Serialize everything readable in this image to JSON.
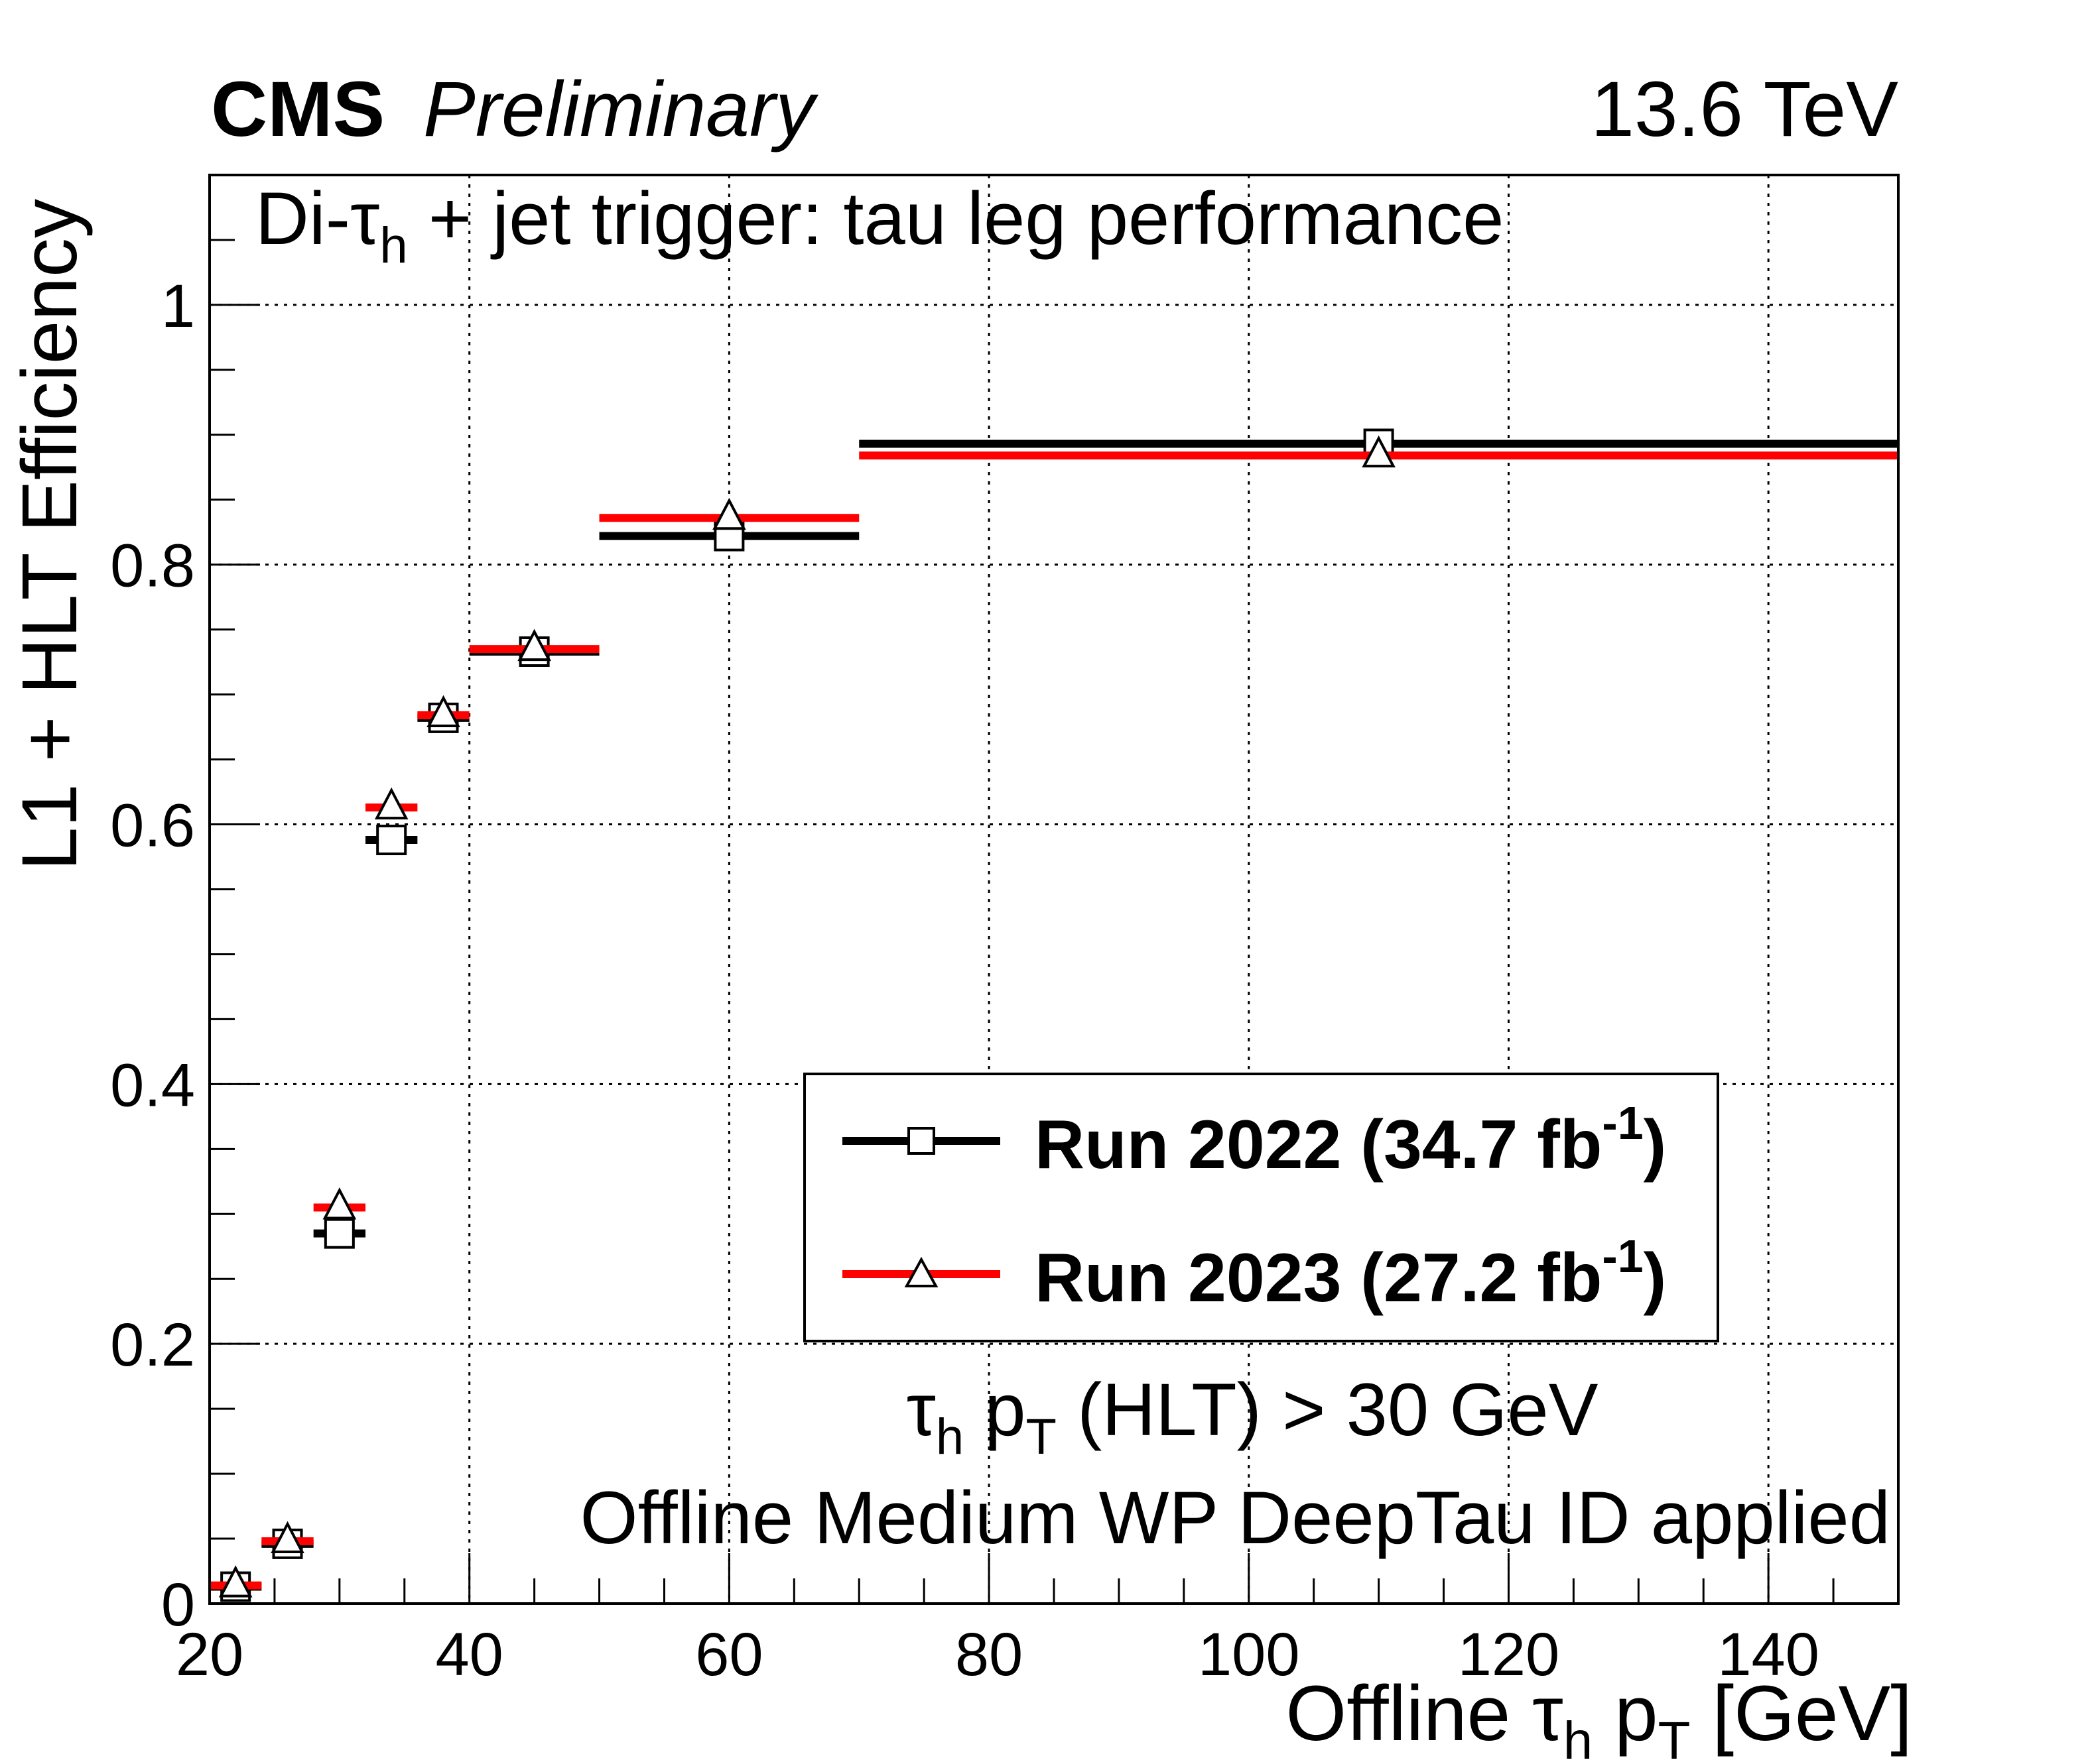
{
  "header": {
    "experiment": "CMS",
    "status": "Preliminary",
    "energy": "13.6 TeV"
  },
  "annotations": {
    "title_prefix": "Di-",
    "title_tau": "τ",
    "title_sub": "h",
    "title_suffix": " + jet trigger: tau leg performance",
    "cut_tau": "τ",
    "cut_tau_sub": "h",
    "cut_p": " p",
    "cut_p_sub": "T",
    "cut_suffix": " (HLT) > 30 GeV",
    "id_text": "Offline Medium WP DeepTau ID applied"
  },
  "axes": {
    "x_label_prefix": "Offline ",
    "x_label_tau": "τ",
    "x_label_tau_sub": "h",
    "x_label_p": " p",
    "x_label_p_sub": "T",
    "x_label_suffix": " [GeV]",
    "y_label": "L1 + HLT Efficiency"
  },
  "chart_data": {
    "type": "scatter",
    "title": "Di-τh + jet trigger: tau leg performance",
    "xlabel": "Offline τh pT [GeV]",
    "ylabel": "L1 + HLT Efficiency",
    "xlim": [
      20,
      150
    ],
    "ylim": [
      0,
      1.1
    ],
    "grid": true,
    "x_ticks": [
      20,
      40,
      60,
      80,
      100,
      120,
      140
    ],
    "y_ticks": [
      0,
      0.2,
      0.4,
      0.6,
      0.8,
      1
    ],
    "x_tick_labels": [
      "20",
      "40",
      "60",
      "80",
      "100",
      "120",
      "140"
    ],
    "y_tick_labels": [
      "0",
      "0.2",
      "0.4",
      "0.6",
      "0.8",
      "1"
    ],
    "legend_position": "center-right",
    "series": [
      {
        "name": "Run 2022",
        "label_main": "Run 2022 (34.7 fb",
        "label_sup": "-1",
        "label_end": ")",
        "color": "#000000",
        "marker": "open-square",
        "points": [
          {
            "x": 22,
            "xlo": 20,
            "xhi": 24,
            "y": 0.013
          },
          {
            "x": 26,
            "xlo": 24,
            "xhi": 28,
            "y": 0.046
          },
          {
            "x": 30,
            "xlo": 28,
            "xhi": 32,
            "y": 0.285
          },
          {
            "x": 34,
            "xlo": 32,
            "xhi": 36,
            "y": 0.588
          },
          {
            "x": 38,
            "xlo": 36,
            "xhi": 40,
            "y": 0.682
          },
          {
            "x": 45,
            "xlo": 40,
            "xhi": 50,
            "y": 0.733
          },
          {
            "x": 60,
            "xlo": 50,
            "xhi": 70,
            "y": 0.822
          },
          {
            "x": 110,
            "xlo": 70,
            "xhi": 150,
            "y": 0.893
          }
        ]
      },
      {
        "name": "Run 2023",
        "label_main": "Run 2023 (27.2 fb",
        "label_sup": "-1",
        "label_end": ")",
        "color": "#ff0000",
        "marker": "open-triangle",
        "points": [
          {
            "x": 22,
            "xlo": 20,
            "xhi": 24,
            "y": 0.014
          },
          {
            "x": 26,
            "xlo": 24,
            "xhi": 28,
            "y": 0.048
          },
          {
            "x": 30,
            "xlo": 28,
            "xhi": 32,
            "y": 0.305
          },
          {
            "x": 34,
            "xlo": 32,
            "xhi": 36,
            "y": 0.613
          },
          {
            "x": 38,
            "xlo": 36,
            "xhi": 40,
            "y": 0.684
          },
          {
            "x": 45,
            "xlo": 40,
            "xhi": 50,
            "y": 0.735
          },
          {
            "x": 60,
            "xlo": 50,
            "xhi": 70,
            "y": 0.836
          },
          {
            "x": 110,
            "xlo": 70,
            "xhi": 150,
            "y": 0.884
          }
        ]
      }
    ]
  }
}
